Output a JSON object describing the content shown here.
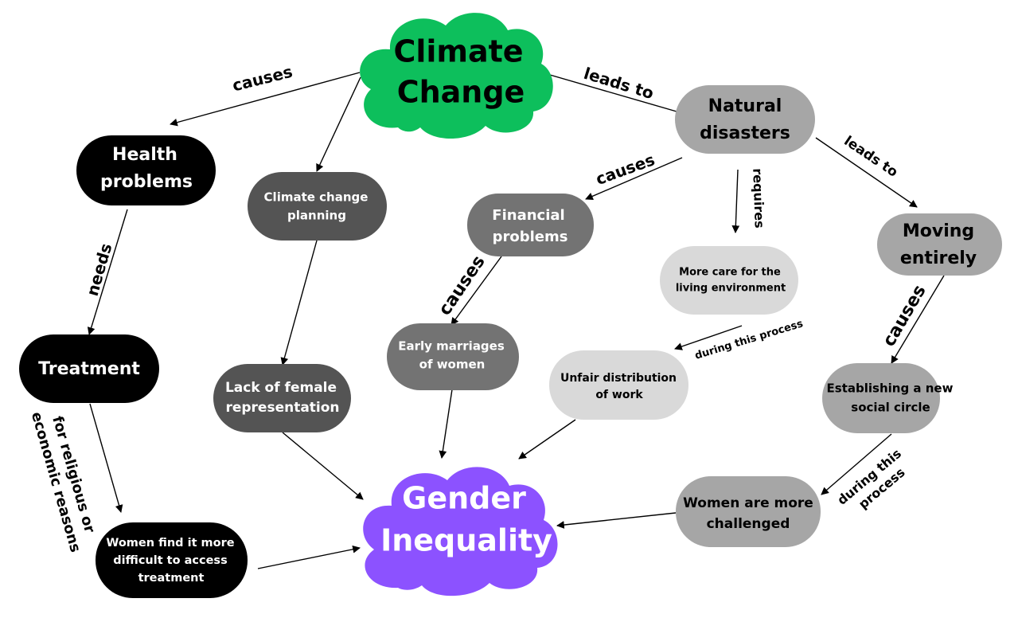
{
  "colors": {
    "cloud_green": "#0dbf5c",
    "cloud_purple": "#8c52ff",
    "black": "#000000",
    "dark_gray": "#545454",
    "mid_gray": "#737373",
    "gray": "#a6a6a6",
    "light_gray": "#d9d9d9",
    "white": "#ffffff"
  },
  "nodes": {
    "climate_change": [
      "Climate",
      "Change"
    ],
    "gender_inequality": [
      "Gender",
      "Inequality"
    ],
    "health_problems": [
      "Health",
      "problems"
    ],
    "treatment": [
      "Treatment"
    ],
    "women_access": [
      "Women find it more",
      "difficult to access",
      "treatment"
    ],
    "climate_planning": [
      "Climate change",
      "planning"
    ],
    "lack_female": [
      "Lack of female",
      "representation"
    ],
    "financial_problems": [
      "Financial",
      "problems"
    ],
    "early_marriages": [
      "Early marriages",
      "of women"
    ],
    "natural_disasters": [
      "Natural",
      "disasters"
    ],
    "more_care": [
      "More care for the",
      "living environment"
    ],
    "unfair_distribution": [
      "Unfair distribution",
      "of work"
    ],
    "moving_entirely": [
      "Moving",
      "entirely"
    ],
    "social_circle": [
      "Establishing a new",
      "social circle"
    ],
    "women_challenged": [
      "Women are more",
      "challenged"
    ]
  },
  "edge_labels": {
    "causes_health": "causes",
    "leads_to_disasters": "leads to",
    "needs": "needs",
    "religious_reasons": [
      "for religious or",
      "economic reasons"
    ],
    "causes_financial": "causes",
    "requires": "requires",
    "leads_to_moving": "leads to",
    "causes_marriages": "causes",
    "during_process_work": "during this process",
    "causes_social": "causes",
    "during_process_challenged": [
      "during this",
      "process"
    ]
  }
}
